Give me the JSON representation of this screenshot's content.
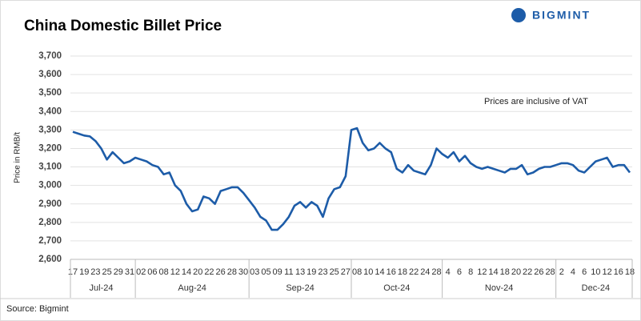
{
  "chart_data": {
    "type": "line",
    "title": "China Domestic Billet Price",
    "y_label": "Price in RMB/t",
    "annotation": "Prices are inclusive of VAT",
    "source": "Source: Bigmint",
    "brand": "BIGMINT",
    "months": [
      "Jul-24",
      "Aug-24",
      "Sep-24",
      "Oct-24",
      "Nov-24",
      "Dec-24"
    ],
    "categories": [
      "17",
      null,
      "19",
      null,
      "23",
      null,
      "25",
      null,
      "29",
      null,
      "31",
      null,
      "02",
      null,
      "06",
      null,
      "08",
      null,
      "12",
      null,
      "14",
      null,
      "20",
      null,
      "22",
      null,
      "26",
      null,
      "28",
      null,
      "30",
      null,
      "03",
      null,
      "05",
      null,
      "09",
      null,
      "11",
      null,
      "13",
      null,
      "19",
      null,
      "23",
      null,
      "25",
      null,
      "27",
      null,
      "08",
      null,
      "10",
      null,
      "14",
      null,
      "16",
      null,
      "18",
      null,
      "22",
      null,
      "24",
      null,
      "28",
      null,
      "4",
      null,
      "6",
      null,
      "8",
      null,
      "12",
      null,
      "14",
      null,
      "18",
      null,
      "20",
      null,
      "22",
      null,
      "26",
      null,
      "28",
      null,
      "2",
      null,
      "4",
      null,
      "6",
      null,
      "10",
      null,
      "12",
      null,
      "16",
      null,
      "18"
    ],
    "series": [
      {
        "name": "China Domestic Billet Price",
        "color": "#1d5ca8",
        "values": [
          3290,
          3280,
          3270,
          3265,
          3240,
          3200,
          3140,
          3180,
          3150,
          3120,
          3130,
          3150,
          3140,
          3130,
          3110,
          3100,
          3060,
          3070,
          3000,
          2970,
          2900,
          2860,
          2870,
          2940,
          2930,
          2900,
          2970,
          2980,
          2990,
          2990,
          2960,
          2920,
          2880,
          2830,
          2810,
          2760,
          2760,
          2790,
          2830,
          2890,
          2910,
          2880,
          2910,
          2890,
          2830,
          2930,
          2980,
          2990,
          3050,
          3300,
          3310,
          3230,
          3190,
          3200,
          3230,
          3200,
          3180,
          3090,
          3070,
          3110,
          3080,
          3070,
          3060,
          3110,
          3200,
          3170,
          3150,
          3180,
          3130,
          3160,
          3120,
          3100,
          3090,
          3100,
          3090,
          3080,
          3070,
          3090,
          3090,
          3110,
          3060,
          3070,
          3090,
          3100,
          3100,
          3110,
          3120,
          3120,
          3110,
          3080,
          3070,
          3100,
          3130,
          3140,
          3150,
          3100,
          3110,
          3110,
          3070
        ]
      }
    ],
    "ylim": [
      2600,
      3700
    ],
    "yticks": [
      {
        "value": 2600,
        "label": "2,600"
      },
      {
        "value": 2700,
        "label": "2,700"
      },
      {
        "value": 2800,
        "label": "2,800"
      },
      {
        "value": 2900,
        "label": "2,900"
      },
      {
        "value": 3000,
        "label": "3,000"
      },
      {
        "value": 3100,
        "label": "3,100"
      },
      {
        "value": 3200,
        "label": "3,200"
      },
      {
        "value": 3300,
        "label": "3,300"
      },
      {
        "value": 3400,
        "label": "3,400"
      },
      {
        "value": 3500,
        "label": "3,500"
      },
      {
        "value": 3600,
        "label": "3,600"
      },
      {
        "value": 3700,
        "label": "3,700"
      }
    ],
    "grid": true
  }
}
